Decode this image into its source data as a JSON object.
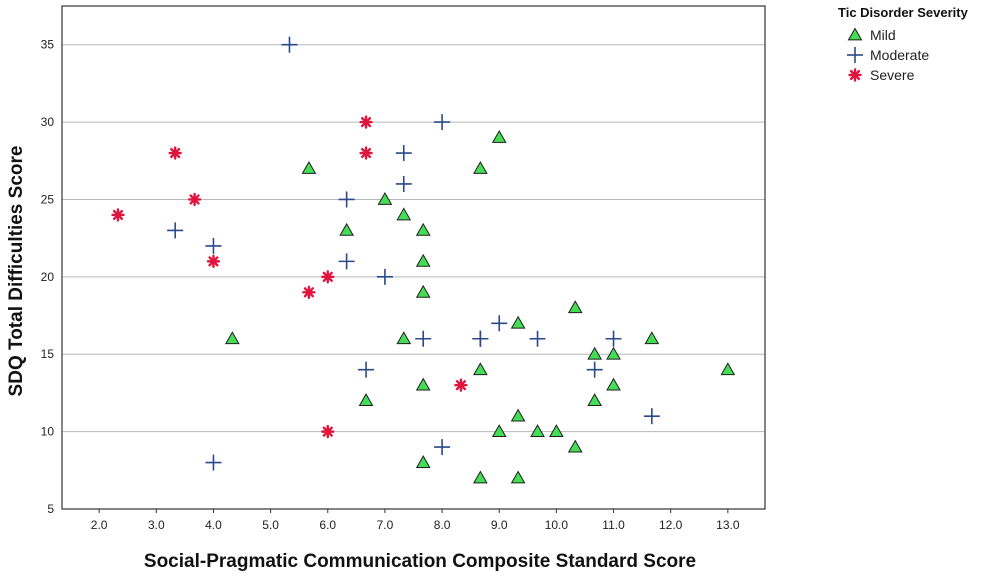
{
  "chart_data": {
    "type": "scatter",
    "xlabel": "Social-Pragmatic Communication Composite Standard Score",
    "ylabel": "SDQ Total Difficulties Score",
    "xlim": [
      1.35,
      13.65
    ],
    "ylim": [
      5,
      37.5
    ],
    "x_ticks": [
      "2.0",
      "3.0",
      "4.0",
      "5.0",
      "6.0",
      "7.0",
      "8.0",
      "9.0",
      "10.0",
      "11.0",
      "12.0",
      "13.0"
    ],
    "y_ticks": [
      "5",
      "10",
      "15",
      "20",
      "25",
      "30",
      "35"
    ],
    "grid": "horizontal",
    "legend": {
      "title": "Tic Disorder Severity",
      "placement": "top-right, outside plot"
    },
    "series": [
      {
        "name": "Mild",
        "marker": "triangle",
        "color": "#44dd55",
        "points": [
          [
            4.33,
            16
          ],
          [
            5.67,
            27
          ],
          [
            6.33,
            23
          ],
          [
            6.67,
            12
          ],
          [
            7.0,
            25
          ],
          [
            7.33,
            24
          ],
          [
            7.33,
            16
          ],
          [
            7.67,
            23
          ],
          [
            7.67,
            21
          ],
          [
            7.67,
            19
          ],
          [
            7.67,
            13
          ],
          [
            7.67,
            8
          ],
          [
            8.67,
            27
          ],
          [
            8.67,
            14
          ],
          [
            8.67,
            7
          ],
          [
            9.0,
            29
          ],
          [
            9.0,
            10
          ],
          [
            9.33,
            17
          ],
          [
            9.33,
            11
          ],
          [
            9.33,
            7
          ],
          [
            9.67,
            10
          ],
          [
            10.0,
            10
          ],
          [
            10.33,
            18
          ],
          [
            10.33,
            9
          ],
          [
            10.67,
            15
          ],
          [
            10.67,
            12
          ],
          [
            11.0,
            15
          ],
          [
            11.0,
            13
          ],
          [
            11.67,
            16
          ],
          [
            13.0,
            14
          ]
        ]
      },
      {
        "name": "Moderate",
        "marker": "plus",
        "color": "#2a4a8a",
        "points": [
          [
            3.33,
            23
          ],
          [
            4.0,
            22
          ],
          [
            4.0,
            8
          ],
          [
            5.33,
            35
          ],
          [
            6.33,
            25
          ],
          [
            6.33,
            21
          ],
          [
            6.67,
            14
          ],
          [
            7.0,
            20
          ],
          [
            7.33,
            28
          ],
          [
            7.33,
            26
          ],
          [
            7.67,
            16
          ],
          [
            8.0,
            30
          ],
          [
            8.0,
            9
          ],
          [
            8.67,
            16
          ],
          [
            8.67,
            16
          ],
          [
            9.0,
            17
          ],
          [
            9.67,
            16
          ],
          [
            10.67,
            14
          ],
          [
            11.0,
            16
          ],
          [
            11.67,
            11
          ]
        ]
      },
      {
        "name": "Severe",
        "marker": "asterisk",
        "color": "#e0143c",
        "points": [
          [
            2.33,
            24
          ],
          [
            3.33,
            28
          ],
          [
            3.67,
            25
          ],
          [
            4.0,
            21
          ],
          [
            5.67,
            19
          ],
          [
            6.0,
            20
          ],
          [
            6.0,
            10
          ],
          [
            6.67,
            30
          ],
          [
            6.67,
            28
          ],
          [
            8.33,
            13
          ]
        ]
      }
    ]
  }
}
